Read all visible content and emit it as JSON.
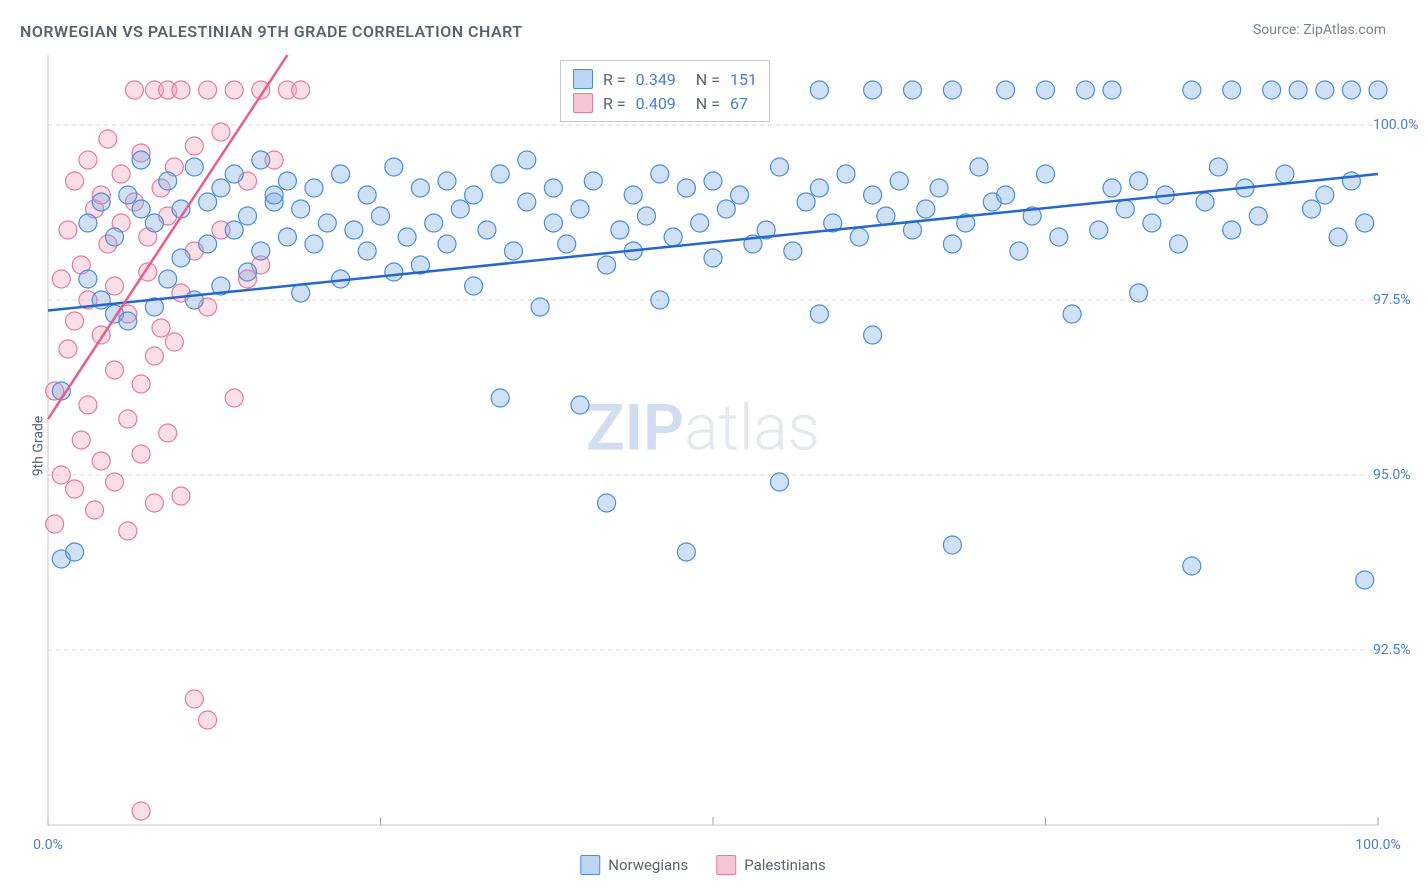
{
  "title": "NORWEGIAN VS PALESTINIAN 9TH GRADE CORRELATION CHART",
  "source": "Source: ZipAtlas.com",
  "ylabel": "9th Grade",
  "watermark": {
    "zip": "ZIP",
    "atlas": "atlas"
  },
  "chart": {
    "type": "scatter",
    "background_color": "#ffffff",
    "grid_color": "#d8d8d8",
    "axis_color": "#c8c8c8",
    "tick_color": "#9aa4af",
    "label_color": "#4a7ec9",
    "xlim": [
      0,
      100
    ],
    "ylim": [
      90,
      101
    ],
    "xticks": [
      0,
      25,
      50,
      75,
      100
    ],
    "xticks_labeled": [
      {
        "v": 0,
        "l": "0.0%"
      },
      {
        "v": 100,
        "l": "100.0%"
      }
    ],
    "yticks": [
      {
        "v": 92.5,
        "l": "92.5%"
      },
      {
        "v": 95.0,
        "l": "95.0%"
      },
      {
        "v": 97.5,
        "l": "97.5%"
      },
      {
        "v": 100.0,
        "l": "100.0%"
      }
    ],
    "marker_radius": 9,
    "marker_stroke_width": 1.2,
    "trend_stroke_width": 2.5,
    "series": {
      "norwegians": {
        "label": "Norwegians",
        "fill": "rgba(120,170,230,0.35)",
        "stroke": "#4a8ed6",
        "trend_color": "#2467d1",
        "swatch_fill": "#bcd6f2",
        "swatch_stroke": "#4a8ed6",
        "R": "0.349",
        "N": "151",
        "trend": {
          "x1": 0,
          "y1": 97.35,
          "x2": 100,
          "y2": 99.3
        },
        "points": [
          [
            1,
            96.2
          ],
          [
            1,
            93.8
          ],
          [
            2,
            93.9
          ],
          [
            3,
            97.8
          ],
          [
            3,
            98.6
          ],
          [
            4,
            97.5
          ],
          [
            4,
            98.9
          ],
          [
            5,
            97.3
          ],
          [
            5,
            98.4
          ],
          [
            6,
            99.0
          ],
          [
            6,
            97.2
          ],
          [
            7,
            98.8
          ],
          [
            7,
            99.5
          ],
          [
            8,
            97.4
          ],
          [
            8,
            98.6
          ],
          [
            9,
            99.2
          ],
          [
            9,
            97.8
          ],
          [
            10,
            98.1
          ],
          [
            10,
            98.8
          ],
          [
            11,
            99.4
          ],
          [
            11,
            97.5
          ],
          [
            12,
            98.3
          ],
          [
            12,
            98.9
          ],
          [
            13,
            99.1
          ],
          [
            13,
            97.7
          ],
          [
            14,
            98.5
          ],
          [
            14,
            99.3
          ],
          [
            15,
            97.9
          ],
          [
            15,
            98.7
          ],
          [
            16,
            98.2
          ],
          [
            16,
            99.5
          ],
          [
            17,
            98.9
          ],
          [
            17,
            99.0
          ],
          [
            18,
            98.4
          ],
          [
            18,
            99.2
          ],
          [
            19,
            97.6
          ],
          [
            19,
            98.8
          ],
          [
            20,
            99.1
          ],
          [
            20,
            98.3
          ],
          [
            21,
            98.6
          ],
          [
            22,
            99.3
          ],
          [
            22,
            97.8
          ],
          [
            23,
            98.5
          ],
          [
            24,
            99.0
          ],
          [
            24,
            98.2
          ],
          [
            25,
            98.7
          ],
          [
            26,
            99.4
          ],
          [
            26,
            97.9
          ],
          [
            27,
            98.4
          ],
          [
            28,
            99.1
          ],
          [
            28,
            98.0
          ],
          [
            29,
            98.6
          ],
          [
            30,
            99.2
          ],
          [
            30,
            98.3
          ],
          [
            31,
            98.8
          ],
          [
            32,
            99.0
          ],
          [
            32,
            97.7
          ],
          [
            33,
            98.5
          ],
          [
            34,
            99.3
          ],
          [
            34,
            96.1
          ],
          [
            35,
            98.2
          ],
          [
            36,
            98.9
          ],
          [
            36,
            99.5
          ],
          [
            37,
            97.4
          ],
          [
            38,
            98.6
          ],
          [
            38,
            99.1
          ],
          [
            39,
            98.3
          ],
          [
            40,
            98.8
          ],
          [
            40,
            96.0
          ],
          [
            41,
            99.2
          ],
          [
            42,
            98.0
          ],
          [
            42,
            94.6
          ],
          [
            43,
            98.5
          ],
          [
            44,
            99.0
          ],
          [
            44,
            98.2
          ],
          [
            45,
            98.7
          ],
          [
            46,
            99.3
          ],
          [
            46,
            97.5
          ],
          [
            47,
            98.4
          ],
          [
            48,
            99.1
          ],
          [
            48,
            93.9
          ],
          [
            49,
            98.6
          ],
          [
            50,
            99.2
          ],
          [
            50,
            98.1
          ],
          [
            51,
            98.8
          ],
          [
            52,
            99.0
          ],
          [
            53,
            98.3
          ],
          [
            54,
            98.5
          ],
          [
            55,
            99.4
          ],
          [
            55,
            94.9
          ],
          [
            56,
            98.2
          ],
          [
            57,
            98.9
          ],
          [
            58,
            99.1
          ],
          [
            58,
            97.3
          ],
          [
            59,
            98.6
          ],
          [
            60,
            99.3
          ],
          [
            61,
            98.4
          ],
          [
            62,
            99.0
          ],
          [
            62,
            97.0
          ],
          [
            63,
            98.7
          ],
          [
            64,
            99.2
          ],
          [
            65,
            98.5
          ],
          [
            66,
            98.8
          ],
          [
            67,
            99.1
          ],
          [
            68,
            98.3
          ],
          [
            68,
            94.0
          ],
          [
            69,
            98.6
          ],
          [
            70,
            99.4
          ],
          [
            71,
            98.9
          ],
          [
            72,
            99.0
          ],
          [
            73,
            98.2
          ],
          [
            74,
            98.7
          ],
          [
            75,
            99.3
          ],
          [
            76,
            98.4
          ],
          [
            77,
            97.3
          ],
          [
            78,
            100.5
          ],
          [
            79,
            98.5
          ],
          [
            80,
            99.1
          ],
          [
            80,
            100.5
          ],
          [
            81,
            98.8
          ],
          [
            82,
            99.2
          ],
          [
            82,
            97.6
          ],
          [
            83,
            98.6
          ],
          [
            84,
            99.0
          ],
          [
            85,
            98.3
          ],
          [
            86,
            100.5
          ],
          [
            86,
            93.7
          ],
          [
            87,
            98.9
          ],
          [
            88,
            99.4
          ],
          [
            89,
            98.5
          ],
          [
            89,
            100.5
          ],
          [
            90,
            99.1
          ],
          [
            91,
            98.7
          ],
          [
            92,
            100.5
          ],
          [
            93,
            99.3
          ],
          [
            94,
            100.5
          ],
          [
            95,
            98.8
          ],
          [
            96,
            99.0
          ],
          [
            96,
            100.5
          ],
          [
            97,
            98.4
          ],
          [
            98,
            99.2
          ],
          [
            98,
            100.5
          ],
          [
            99,
            98.6
          ],
          [
            99,
            93.5
          ],
          [
            100,
            100.5
          ],
          [
            62,
            100.5
          ],
          [
            65,
            100.5
          ],
          [
            68,
            100.5
          ],
          [
            72,
            100.5
          ],
          [
            75,
            100.5
          ],
          [
            58,
            100.5
          ]
        ]
      },
      "palestinians": {
        "label": "Palestinians",
        "fill": "rgba(245,160,185,0.35)",
        "stroke": "#e67aa0",
        "trend_color": "#e85d8a",
        "swatch_fill": "#f5c5d5",
        "swatch_stroke": "#e67aa0",
        "R": "0.409",
        "N": "67",
        "trend": {
          "x1": 0,
          "y1": 95.8,
          "x2": 18,
          "y2": 101
        },
        "points": [
          [
            0.5,
            94.3
          ],
          [
            0.5,
            96.2
          ],
          [
            1,
            97.8
          ],
          [
            1,
            95.0
          ],
          [
            1.5,
            98.5
          ],
          [
            1.5,
            96.8
          ],
          [
            2,
            99.2
          ],
          [
            2,
            94.8
          ],
          [
            2,
            97.2
          ],
          [
            2.5,
            98.0
          ],
          [
            2.5,
            95.5
          ],
          [
            3,
            99.5
          ],
          [
            3,
            97.5
          ],
          [
            3,
            96.0
          ],
          [
            3.5,
            98.8
          ],
          [
            3.5,
            94.5
          ],
          [
            4,
            99.0
          ],
          [
            4,
            97.0
          ],
          [
            4,
            95.2
          ],
          [
            4.5,
            98.3
          ],
          [
            4.5,
            99.8
          ],
          [
            5,
            97.7
          ],
          [
            5,
            94.9
          ],
          [
            5,
            96.5
          ],
          [
            5.5,
            98.6
          ],
          [
            5.5,
            99.3
          ],
          [
            6,
            95.8
          ],
          [
            6,
            97.3
          ],
          [
            6,
            94.2
          ],
          [
            6.5,
            98.9
          ],
          [
            6.5,
            100.5
          ],
          [
            7,
            96.3
          ],
          [
            7,
            99.6
          ],
          [
            7,
            95.3
          ],
          [
            7.5,
            97.9
          ],
          [
            7.5,
            98.4
          ],
          [
            8,
            100.5
          ],
          [
            8,
            96.7
          ],
          [
            8,
            94.6
          ],
          [
            8.5,
            99.1
          ],
          [
            8.5,
            97.1
          ],
          [
            9,
            98.7
          ],
          [
            9,
            95.6
          ],
          [
            9,
            100.5
          ],
          [
            9.5,
            96.9
          ],
          [
            9.5,
            99.4
          ],
          [
            10,
            97.6
          ],
          [
            10,
            94.7
          ],
          [
            10,
            100.5
          ],
          [
            11,
            98.2
          ],
          [
            11,
            99.7
          ],
          [
            11,
            91.8
          ],
          [
            12,
            97.4
          ],
          [
            12,
            100.5
          ],
          [
            12,
            91.5
          ],
          [
            13,
            98.5
          ],
          [
            13,
            99.9
          ],
          [
            14,
            96.1
          ],
          [
            14,
            100.5
          ],
          [
            15,
            99.2
          ],
          [
            15,
            97.8
          ],
          [
            16,
            100.5
          ],
          [
            16,
            98.0
          ],
          [
            17,
            99.5
          ],
          [
            18,
            100.5
          ],
          [
            7,
            90.2
          ],
          [
            19,
            100.5
          ]
        ]
      }
    }
  },
  "legend_bottom": [
    {
      "key": "norwegians"
    },
    {
      "key": "palestinians"
    }
  ]
}
